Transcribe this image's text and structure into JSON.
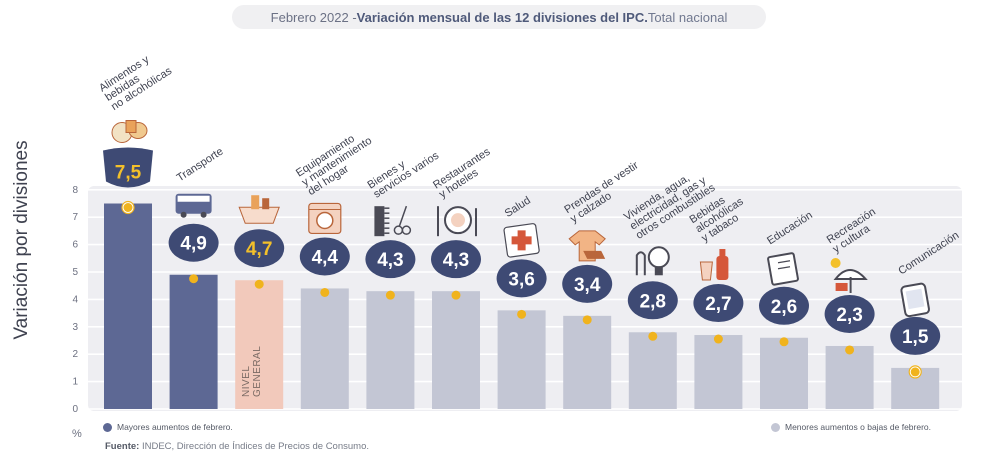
{
  "title": {
    "prefix": "Febrero 2022 - ",
    "main": "Variación mensual de las 12 divisiones del IPC.",
    "suffix": " Total nacional"
  },
  "yaxis_label": "Variación por divisiones",
  "unit_label": "%",
  "legend": {
    "high": "Mayores aumentos de febrero.",
    "low": "Menores aumentos o bajas de febrero."
  },
  "source": {
    "label": "Fuente:",
    "text": " INDEC, Dirección de Índices de Precios de Consumo."
  },
  "colors": {
    "high": "#5d6894",
    "low": "#c3c6d4",
    "general": "#f2c9bb",
    "badge": "#3e4a74",
    "dot": "#f0b31d",
    "panel": "#eeeef2",
    "highlight_value": "#f3c02a"
  },
  "chart_data": {
    "type": "bar",
    "title": "Febrero 2022 - Variación mensual de las 12 divisiones del IPC. Total nacional",
    "xlabel": "",
    "ylabel": "Variación por divisiones",
    "ylim": [
      0,
      8
    ],
    "yticks": [
      0,
      1,
      2,
      3,
      4,
      5,
      6,
      7,
      8
    ],
    "grid": true,
    "categories": [
      "Alimentos y bebidas no alcohólicas",
      "Transporte",
      "Nivel general",
      "Equipamiento y mantenimiento del hogar",
      "Bienes y servicios varios",
      "Restaurantes y hoteles",
      "Salud",
      "Prendas de vestir y calzado",
      "Vivienda, agua, electricidad, gas y otros combustibles",
      "Bebidas alcohólicas y tabaco",
      "Educación",
      "Recreación y cultura",
      "Comunicación"
    ],
    "labels": [
      [
        "Alimentos y",
        "bebidas",
        "no alcohólicas"
      ],
      [
        "Transporte"
      ],
      [],
      [
        "Equipamiento",
        "y mantenimiento",
        "del hogar"
      ],
      [
        "Bienes y",
        "servicios varios"
      ],
      [
        "Restaurantes",
        "y hoteles"
      ],
      [
        "Salud"
      ],
      [
        "Prendas de vestir",
        "y calzado"
      ],
      [
        "Vivienda, agua,",
        "electricidad, gas y",
        "otros combustibles"
      ],
      [
        "Bebidas",
        "alcohólicas",
        "y tabaco"
      ],
      [
        "Educación"
      ],
      [
        "Recreación",
        "y cultura"
      ],
      [
        "Comunicación"
      ]
    ],
    "values": [
      7.5,
      4.9,
      4.7,
      4.4,
      4.3,
      4.3,
      3.6,
      3.4,
      2.8,
      2.7,
      2.6,
      2.3,
      1.5
    ],
    "value_labels": [
      "7,5",
      "4,9",
      "4,7",
      "4,4",
      "4,3",
      "4,3",
      "3,6",
      "3,4",
      "2,8",
      "2,7",
      "2,6",
      "2,3",
      "1,5"
    ],
    "groups": [
      "high",
      "high",
      "general",
      "low",
      "low",
      "low",
      "low",
      "low",
      "low",
      "low",
      "low",
      "low",
      "low"
    ],
    "icons": [
      "chicken-icon",
      "bus-card-icon",
      "general-basket-icon",
      "washing-machine-icon",
      "comb-scissors-icon",
      "plate-cutlery-icon",
      "first-aid-icon",
      "tshirt-icon",
      "lightbulb-icon",
      "bottle-glass-icon",
      "notebook-icon",
      "umbrella-icon",
      "smartphone-icon"
    ],
    "general_label": [
      "NIVEL",
      "GENERAL"
    ]
  }
}
